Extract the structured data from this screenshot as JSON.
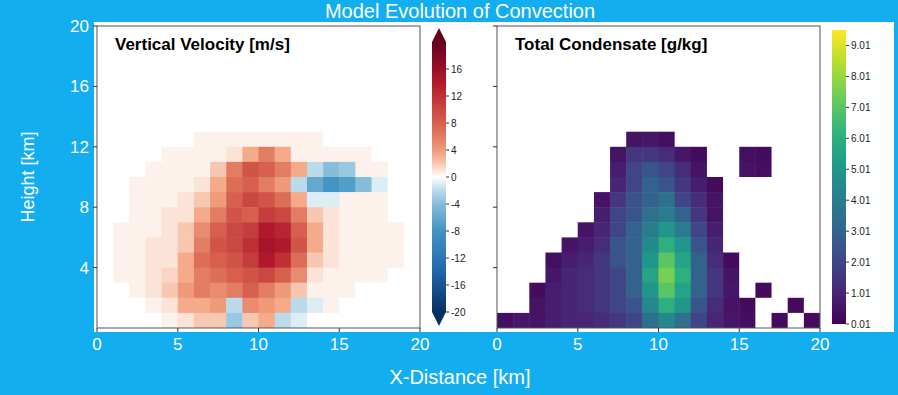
{
  "title": "Model Evolution of Convection",
  "x_label": "X-Distance [km]",
  "chart_data": [
    {
      "type": "heatmap",
      "title": "Vertical Velocity [m/s]",
      "y_label": "Height [km]",
      "xlim": [
        0,
        20
      ],
      "ylim": [
        0,
        20
      ],
      "xticks": [
        0,
        5,
        10,
        15,
        20
      ],
      "yticks": [
        4,
        8,
        12,
        16,
        20
      ],
      "x": [
        0.5,
        1.5,
        2.5,
        3.5,
        4.5,
        5.5,
        6.5,
        7.5,
        8.5,
        9.5,
        10.5,
        11.5,
        12.5,
        13.5,
        14.5,
        15.5,
        16.5,
        17.5,
        18.5,
        19.5
      ],
      "y": [
        19.5,
        18.5,
        17.5,
        16.5,
        15.5,
        14.5,
        13.5,
        12.5,
        11.5,
        10.5,
        9.5,
        8.5,
        7.5,
        6.5,
        5.5,
        4.5,
        3.5,
        2.5,
        1.5,
        0.5
      ],
      "values": [
        [
          0,
          0,
          0,
          0,
          0,
          0,
          0,
          0,
          0,
          0,
          0,
          0,
          0,
          0,
          0,
          0,
          0,
          0,
          0,
          0
        ],
        [
          0,
          0,
          0,
          0,
          0,
          0,
          0,
          0,
          0,
          0,
          0,
          0,
          0,
          0,
          0,
          0,
          0,
          0,
          0,
          0
        ],
        [
          0,
          0,
          0,
          0,
          0,
          0,
          0,
          0,
          0,
          0,
          0,
          0,
          0,
          0,
          0,
          0,
          0,
          0,
          0,
          0
        ],
        [
          0,
          0,
          0,
          0,
          0,
          0,
          0,
          0,
          0,
          0,
          0,
          0,
          0,
          0,
          0,
          0,
          0,
          0,
          0,
          0
        ],
        [
          0,
          0,
          0,
          0,
          0,
          0,
          0,
          0,
          0,
          0,
          0,
          0,
          0,
          0,
          0,
          0,
          0,
          0,
          0,
          0
        ],
        [
          0,
          0,
          0,
          0,
          0,
          0,
          0,
          0,
          0,
          0,
          0,
          0,
          0,
          0,
          0,
          0,
          0,
          0,
          0,
          0
        ],
        [
          0,
          0,
          0,
          0,
          0,
          0,
          0,
          0,
          0,
          0,
          0,
          0,
          0,
          0,
          0,
          0,
          0,
          0,
          0,
          0
        ],
        [
          0,
          0,
          0,
          0,
          0,
          0,
          0.5,
          0.5,
          0.5,
          0.5,
          0.5,
          0.5,
          0.5,
          0.5,
          0,
          0,
          0,
          0,
          0,
          0
        ],
        [
          0,
          0,
          0,
          0,
          0.5,
          0.5,
          0.5,
          0.5,
          1,
          3,
          6,
          3,
          0.5,
          0.5,
          0.5,
          0.5,
          0.5,
          0,
          0,
          0
        ],
        [
          0,
          0,
          0,
          0.5,
          0.5,
          0.5,
          0.5,
          2,
          6,
          9,
          8,
          6,
          3,
          -2,
          -4,
          -3,
          0.5,
          0.5,
          0,
          0
        ],
        [
          0,
          0,
          0.5,
          0.5,
          0.5,
          0.5,
          1,
          3,
          7,
          8,
          6,
          4,
          -2,
          -6,
          -8,
          -7,
          -4,
          -1,
          0,
          0
        ],
        [
          0,
          0,
          0.5,
          0.5,
          0.5,
          1,
          2,
          4,
          8,
          10,
          9,
          7,
          3,
          -1,
          -1,
          0.5,
          0.5,
          0.5,
          0,
          0
        ],
        [
          0,
          0,
          0.5,
          0.5,
          1,
          1,
          3,
          6,
          9,
          8,
          11,
          10,
          6,
          2,
          1,
          0.5,
          0.5,
          0.5,
          0,
          0
        ],
        [
          0,
          0.5,
          0.5,
          0.5,
          1,
          2,
          5,
          8,
          10,
          11,
          14,
          13,
          8,
          3,
          1,
          0.5,
          0.5,
          0.5,
          0.5,
          0
        ],
        [
          0,
          0.5,
          0.5,
          1,
          1,
          2,
          6,
          9,
          10,
          12,
          15,
          14,
          9,
          3,
          1,
          0.5,
          0.5,
          0.5,
          0.5,
          0
        ],
        [
          0,
          0.5,
          0.5,
          1,
          1,
          3,
          7,
          8,
          9,
          11,
          14,
          12,
          7,
          2,
          1,
          0.5,
          0.5,
          0.5,
          0.5,
          0
        ],
        [
          0,
          0.5,
          0.5,
          1,
          1.5,
          3,
          6,
          7,
          8,
          9,
          10,
          8,
          5,
          1,
          0.5,
          0.5,
          0.5,
          0.5,
          0,
          0
        ],
        [
          0,
          0,
          0.5,
          1,
          2,
          4,
          6,
          5,
          6,
          8,
          6,
          4,
          2,
          0.5,
          0.5,
          0.5,
          0,
          0,
          0,
          0
        ],
        [
          0,
          0,
          0,
          0.5,
          1,
          3,
          3,
          4,
          -2,
          5,
          4,
          3,
          -2,
          -1,
          0.5,
          0,
          0,
          0,
          0,
          0
        ],
        [
          0,
          0,
          0,
          0,
          0.5,
          1,
          2,
          2,
          -3,
          2,
          3,
          -2,
          -1,
          0,
          0,
          0,
          0,
          0,
          0,
          0
        ]
      ],
      "colorbar": {
        "range": [
          -20,
          20
        ],
        "ticks": [
          16,
          12,
          8,
          4,
          0,
          -4,
          -8,
          -12,
          -16,
          -20
        ]
      }
    },
    {
      "type": "heatmap",
      "title": "Total Condensate [g/kg]",
      "tick_labels": "x",
      "xlim": [
        0,
        20
      ],
      "ylim": [
        0,
        20
      ],
      "xticks": [
        0,
        5,
        10,
        15,
        20
      ],
      "yticks": [
        4,
        8,
        12,
        16,
        20
      ],
      "x": [
        0.5,
        1.5,
        2.5,
        3.5,
        4.5,
        5.5,
        6.5,
        7.5,
        8.5,
        9.5,
        10.5,
        11.5,
        12.5,
        13.5,
        14.5,
        15.5,
        16.5,
        17.5,
        18.5,
        19.5
      ],
      "y": [
        19.5,
        18.5,
        17.5,
        16.5,
        15.5,
        14.5,
        13.5,
        12.5,
        11.5,
        10.5,
        9.5,
        8.5,
        7.5,
        6.5,
        5.5,
        4.5,
        3.5,
        2.5,
        1.5,
        0.5
      ],
      "values": [
        [
          0,
          0,
          0,
          0,
          0,
          0,
          0,
          0,
          0,
          0,
          0,
          0,
          0,
          0,
          0,
          0,
          0,
          0,
          0,
          0
        ],
        [
          0,
          0,
          0,
          0,
          0,
          0,
          0,
          0,
          0,
          0,
          0,
          0,
          0,
          0,
          0,
          0,
          0,
          0,
          0,
          0
        ],
        [
          0,
          0,
          0,
          0,
          0,
          0,
          0,
          0,
          0,
          0,
          0,
          0,
          0,
          0,
          0,
          0,
          0,
          0,
          0,
          0
        ],
        [
          0,
          0,
          0,
          0,
          0,
          0,
          0,
          0,
          0,
          0,
          0,
          0,
          0,
          0,
          0,
          0,
          0,
          0,
          0,
          0
        ],
        [
          0,
          0,
          0,
          0,
          0,
          0,
          0,
          0,
          0,
          0,
          0,
          0,
          0,
          0,
          0,
          0,
          0,
          0,
          0,
          0
        ],
        [
          0,
          0,
          0,
          0,
          0,
          0,
          0,
          0,
          0,
          0,
          0,
          0,
          0,
          0,
          0,
          0,
          0,
          0,
          0,
          0
        ],
        [
          0,
          0,
          0,
          0,
          0,
          0,
          0,
          0,
          0,
          0,
          0,
          0,
          0,
          0,
          0,
          0,
          0,
          0,
          0,
          0
        ],
        [
          0,
          0,
          0,
          0,
          0,
          0,
          0,
          0,
          0.5,
          0.6,
          0.4,
          0,
          0,
          0,
          0,
          0,
          0,
          0,
          0,
          0
        ],
        [
          0,
          0,
          0,
          0,
          0,
          0,
          0,
          0.5,
          1.5,
          1.5,
          1.2,
          0.6,
          0.3,
          0,
          0,
          0.4,
          0.3,
          0,
          0,
          0
        ],
        [
          0,
          0,
          0,
          0,
          0,
          0,
          0,
          0.8,
          2,
          2.5,
          2,
          1.2,
          0.5,
          0,
          0,
          0.5,
          0.4,
          0,
          0,
          0
        ],
        [
          0,
          0,
          0,
          0,
          0,
          0,
          0,
          1,
          2,
          3,
          2.5,
          1.5,
          0.8,
          0.3,
          0,
          0,
          0,
          0,
          0,
          0
        ],
        [
          0,
          0,
          0,
          0,
          0,
          0,
          0.5,
          1.5,
          2.5,
          3,
          3.5,
          2,
          1.2,
          0.5,
          0,
          0,
          0,
          0,
          0,
          0
        ],
        [
          0,
          0,
          0,
          0,
          0,
          0,
          0.8,
          2,
          2.5,
          3.5,
          4,
          3,
          1.5,
          0.5,
          0,
          0,
          0,
          0,
          0,
          0
        ],
        [
          0,
          0,
          0,
          0,
          0,
          0.5,
          1,
          2,
          3,
          4,
          5,
          4,
          2,
          0.8,
          0,
          0,
          0,
          0,
          0,
          0
        ],
        [
          0,
          0,
          0,
          0,
          0.5,
          0.8,
          1.2,
          2.5,
          3,
          4.5,
          6,
          5,
          2.5,
          1,
          0,
          0,
          0,
          0,
          0,
          0
        ],
        [
          0,
          0,
          0,
          0.4,
          0.8,
          1,
          1.5,
          2.5,
          3,
          5,
          7,
          5.5,
          3,
          1.2,
          0.3,
          0,
          0,
          0,
          0,
          0
        ],
        [
          0,
          0,
          0,
          0.6,
          1,
          1.2,
          1.5,
          2,
          3,
          5.5,
          7.5,
          6,
          3,
          1.5,
          0.5,
          0,
          0,
          0,
          0,
          0
        ],
        [
          0,
          0,
          0.3,
          0.8,
          1,
          1.2,
          1.5,
          2,
          3,
          5,
          7,
          5.5,
          3,
          1.5,
          0.6,
          0,
          0.3,
          0,
          0,
          0
        ],
        [
          0,
          0,
          0.5,
          0.8,
          1,
          1.2,
          1.5,
          2,
          2.5,
          4.5,
          6,
          5,
          2.5,
          1.2,
          0.5,
          0.3,
          0,
          0,
          0.3,
          0
        ],
        [
          0.4,
          0.6,
          0.5,
          0.8,
          1,
          1,
          1.2,
          1.5,
          2,
          3.5,
          4.5,
          3.5,
          2,
          1,
          0.6,
          0.4,
          0,
          0.3,
          0,
          0.3
        ]
      ],
      "colorbar": {
        "range": [
          0.01,
          9.51
        ],
        "ticks": [
          0.01,
          1.01,
          2.01,
          3.01,
          4.01,
          5.01,
          6.01,
          7.01,
          8.01,
          9.01
        ]
      }
    }
  ]
}
